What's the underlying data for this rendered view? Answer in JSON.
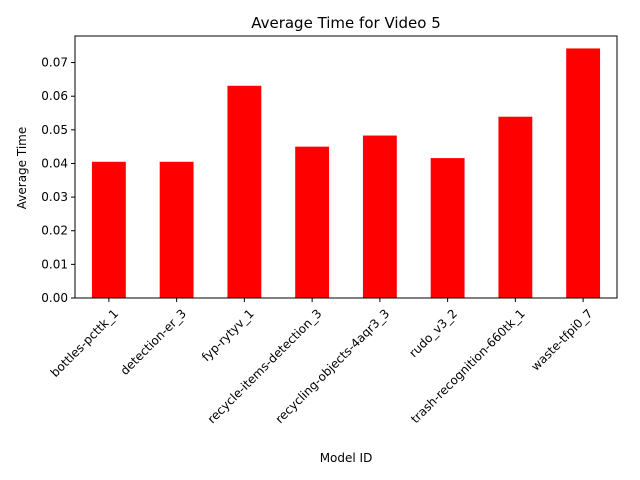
{
  "chart_data": {
    "type": "bar",
    "title": "Average Time for Video 5",
    "xlabel": "Model ID",
    "ylabel": "Average Time",
    "categories": [
      "bottles-pcttk_1",
      "detection-er_3",
      "fyp-rytyv_1",
      "recycle-items-detection_3",
      "recycling-objects-4aqr3_3",
      "rudo_v3_2",
      "trash-recognition-660tk_1",
      "waste-tfpi0_7"
    ],
    "values": [
      0.0405,
      0.0405,
      0.0631,
      0.045,
      0.0483,
      0.0416,
      0.0539,
      0.0742
    ],
    "ylim": [
      0,
      0.0779
    ],
    "yticks": [
      "0.00",
      "0.01",
      "0.02",
      "0.03",
      "0.04",
      "0.05",
      "0.06",
      "0.07"
    ],
    "bar_color": "#ff0000",
    "grid": false,
    "legend": "none"
  }
}
